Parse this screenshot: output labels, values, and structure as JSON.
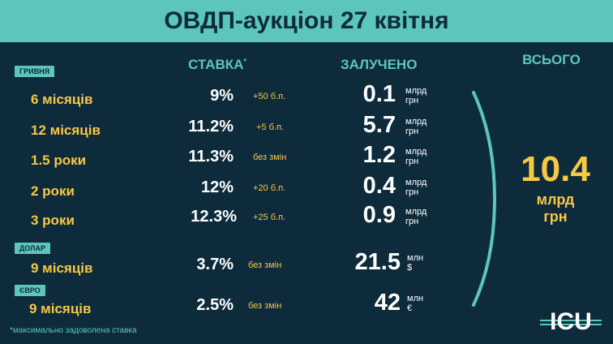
{
  "title": "ОВДП-аукціон 27 квітня",
  "headers": {
    "rate": "СТАВКА",
    "rate_marker": "*",
    "raised": "ЗАЛУЧЕНО",
    "total": "ВСЬОГО"
  },
  "sections": {
    "uah": "ГРИВНЯ",
    "usd": "ДОЛАР",
    "eur": "ЄВРО"
  },
  "rows": [
    {
      "term": "6 місяців",
      "rate": "9%",
      "change": "+50 б.п.",
      "amount": "0.1",
      "unit_line1": "млрд",
      "unit_line2": "грн"
    },
    {
      "term": "12 місяців",
      "rate": "11.2%",
      "change": "+5 б.п.",
      "amount": "5.7",
      "unit_line1": "млрд",
      "unit_line2": "грн"
    },
    {
      "term": "1.5 роки",
      "rate": "11.3%",
      "change": "без змін",
      "amount": "1.2",
      "unit_line1": "млрд",
      "unit_line2": "грн"
    },
    {
      "term": "2 роки",
      "rate": "12%",
      "change": "+20 б.п.",
      "amount": "0.4",
      "unit_line1": "млрд",
      "unit_line2": "грн"
    },
    {
      "term": "3 роки",
      "rate": "12.3%",
      "change": "+25 б.п.",
      "amount": "0.9",
      "unit_line1": "млрд",
      "unit_line2": "грн"
    },
    {
      "term": "9 місяців",
      "rate": "3.7%",
      "change": "без змін",
      "amount": "21.5",
      "unit_line1": "млн",
      "unit_line2": "$"
    },
    {
      "term": "9 місяців",
      "rate": "2.5%",
      "change": "без змін",
      "amount": "42",
      "unit_line1": "млн",
      "unit_line2": "€"
    }
  ],
  "total": {
    "value": "10.4",
    "unit_line1": "млрд",
    "unit_line2": "грн"
  },
  "footnote": "*максимально задоволена ставка",
  "logo": {
    "text": "ICU"
  },
  "colors": {
    "background": "#0e2b3c",
    "accent": "#5cc6bd",
    "highlight": "#f7c843",
    "text": "#ffffff"
  }
}
